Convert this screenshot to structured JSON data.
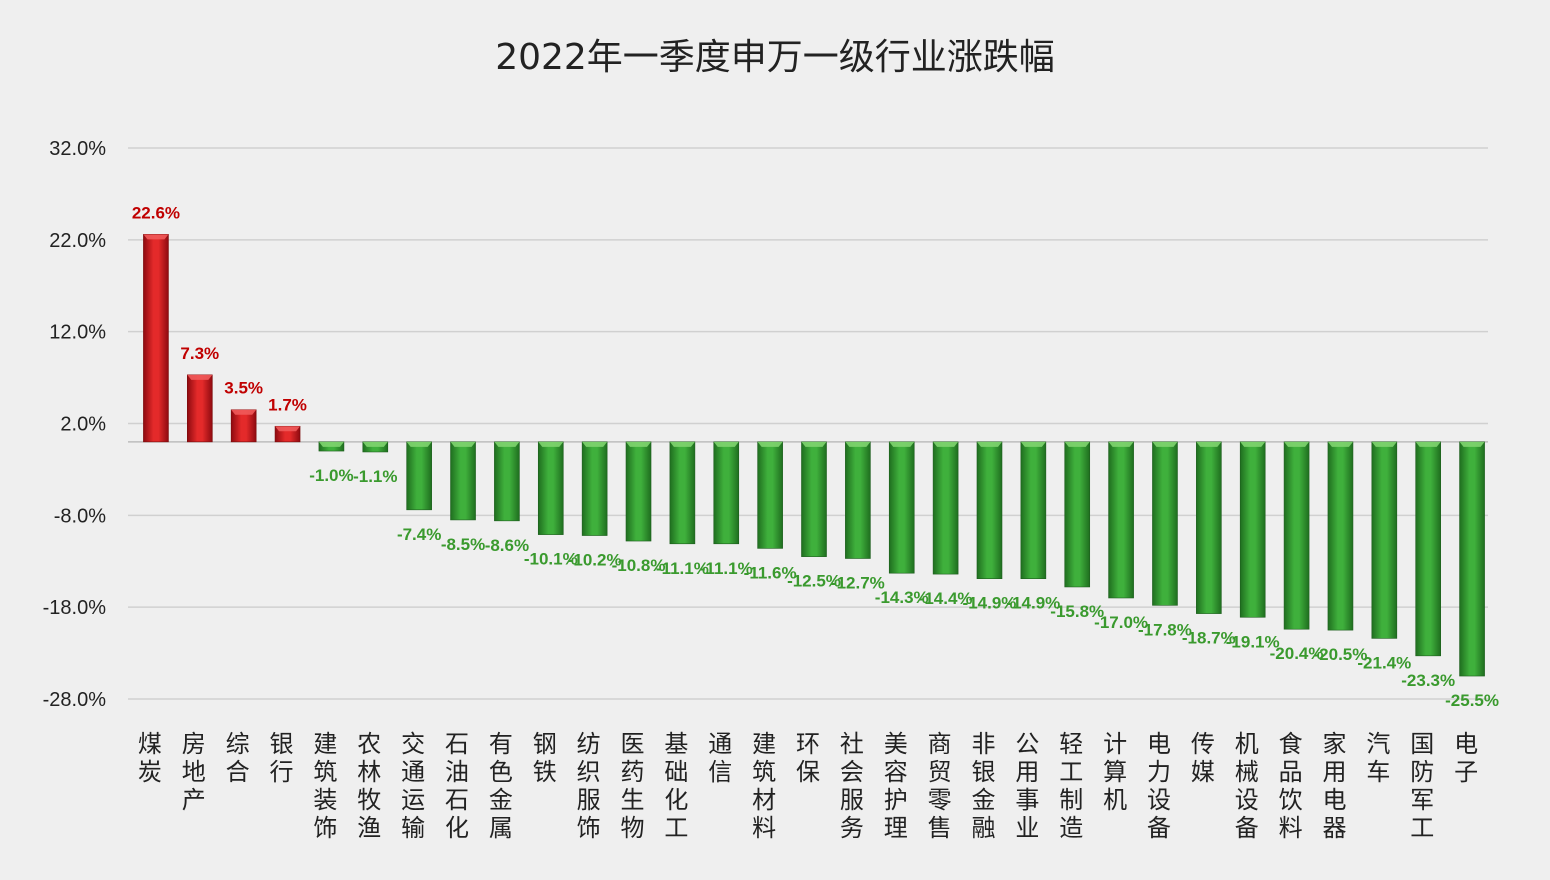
{
  "title": "2022年一季度申万一级行业涨跌幅",
  "colors": {
    "positive": "#c8101a",
    "positive_light": "#f05a5a",
    "negative": "#2f9a30",
    "negative_light": "#7fd46f",
    "positive_label": "#c00000",
    "negative_label": "#3a9a2e",
    "grid": "#d0d0d0"
  },
  "chart_data": {
    "type": "bar",
    "title": "2022年一季度申万一级行业涨跌幅",
    "ylim": [
      -28,
      32
    ],
    "yticks": [
      32,
      22,
      12,
      2,
      -8,
      -18,
      -28
    ],
    "ytick_labels": [
      "32.0%",
      "22.0%",
      "12.0%",
      "2.0%",
      "-8.0%",
      "-18.0%",
      "-28.0%"
    ],
    "grid": true,
    "categories": [
      "煤炭",
      "房地产",
      "综合",
      "银行",
      "建筑装饰",
      "农林牧渔",
      "交通运输",
      "石油石化",
      "有色金属",
      "钢铁",
      "纺织服饰",
      "医药生物",
      "基础化工",
      "通信",
      "建筑材料",
      "环保",
      "社会服务",
      "美容护理",
      "商贸零售",
      "非银金融",
      "公用事业",
      "轻工制造",
      "计算机",
      "电力设备",
      "传媒",
      "机械设备",
      "食品饮料",
      "家用电器",
      "汽车",
      "国防军工",
      "电子"
    ],
    "values": [
      22.6,
      7.3,
      3.5,
      1.7,
      -1.0,
      -1.1,
      -7.4,
      -8.5,
      -8.6,
      -10.1,
      -10.2,
      -10.8,
      -11.1,
      -11.1,
      -11.6,
      -12.5,
      -12.7,
      -14.3,
      -14.4,
      -14.9,
      -14.9,
      -15.8,
      -17.0,
      -17.8,
      -18.7,
      -19.1,
      -20.4,
      -20.5,
      -21.4,
      -23.3,
      -25.5
    ],
    "data_labels": [
      "22.6%",
      "7.3%",
      "3.5%",
      "1.7%",
      "-1.0%",
      "-1.1%",
      "-7.4%",
      "-8.5%",
      "-8.6%",
      "-10.1%",
      "-10.2%",
      "-10.8%",
      "-11.1%",
      "-11.1%",
      "-11.6%",
      "-12.5%",
      "-12.7%",
      "-14.3%",
      "-14.4%",
      "-14.9%",
      "-14.9%",
      "-15.8%",
      "-17.0%",
      "-17.8%",
      "-18.7%",
      "-19.1%",
      "-20.4%",
      "-20.5%",
      "-21.4%",
      "-23.3%",
      "-25.5%"
    ]
  }
}
